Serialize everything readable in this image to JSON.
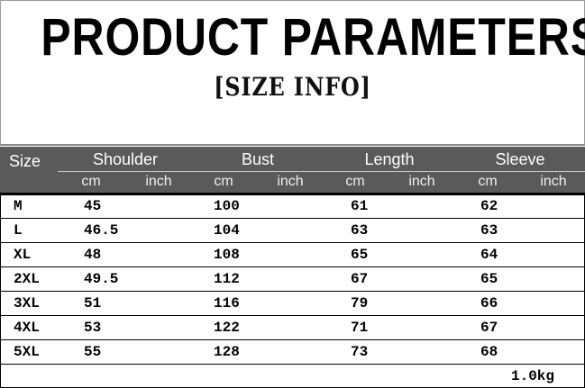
{
  "title": "PRODUCT PARAMETERS",
  "subtitle": "[SIZE INFO]",
  "table": {
    "header_bg": "#5a5a5a",
    "size_header": "Size",
    "groups": [
      "Shoulder",
      "Bust",
      "Length",
      "Sleeve"
    ],
    "units": [
      "cm",
      "inch",
      "cm",
      "inch",
      "cm",
      "inch",
      "cm",
      "inch"
    ],
    "rows": [
      {
        "size": "M",
        "shoulder": "45",
        "bust": "100",
        "length": "61",
        "sleeve": "62"
      },
      {
        "size": "L",
        "shoulder": "46.5",
        "bust": "104",
        "length": "63",
        "sleeve": "63"
      },
      {
        "size": "XL",
        "shoulder": "48",
        "bust": "108",
        "length": "65",
        "sleeve": "64"
      },
      {
        "size": "2XL",
        "shoulder": "49.5",
        "bust": "112",
        "length": "67",
        "sleeve": "65"
      },
      {
        "size": "3XL",
        "shoulder": "51",
        "bust": "116",
        "length": "79",
        "sleeve": "66"
      },
      {
        "size": "4XL",
        "shoulder": "53",
        "bust": "122",
        "length": "71",
        "sleeve": "67"
      },
      {
        "size": "5XL",
        "shoulder": "55",
        "bust": "128",
        "length": "73",
        "sleeve": "68"
      }
    ],
    "weight": "1.0kg"
  }
}
